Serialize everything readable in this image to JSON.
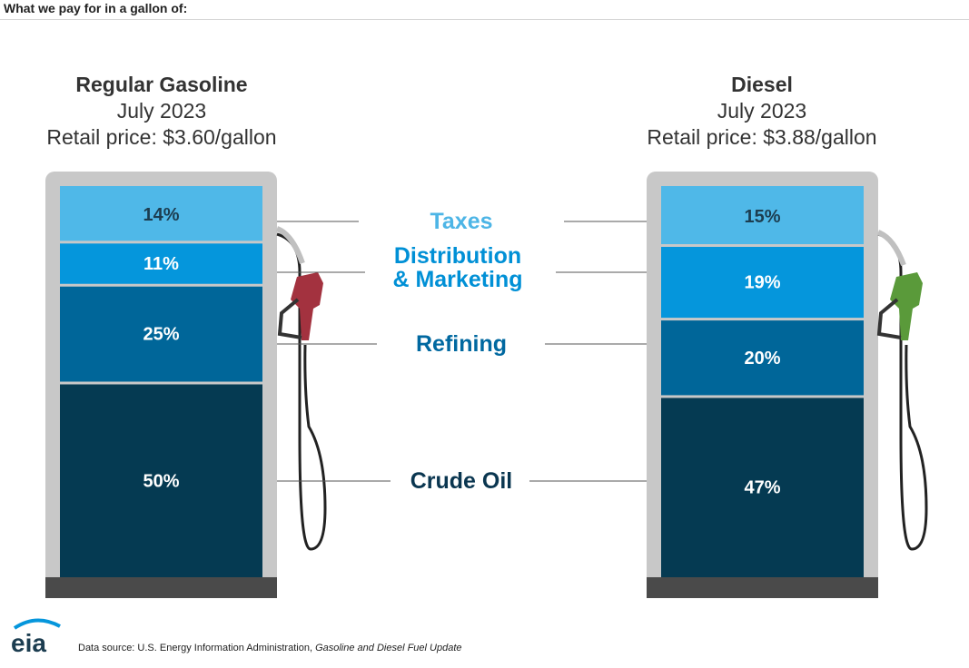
{
  "page_title": "What we pay for in a gallon of:",
  "fuels": [
    {
      "name": "Regular Gasoline",
      "period": "July 2023",
      "price_text": "Retail price: $3.60/gallon",
      "nozzle_color": "#a3323f"
    },
    {
      "name": "Diesel",
      "period": "July 2023",
      "price_text": "Retail price: $3.88/gallon",
      "nozzle_color": "#5a9a3a"
    }
  ],
  "categories": {
    "taxes": "Taxes",
    "distribution_line1": "Distribution",
    "distribution_line2": "& Marketing",
    "refining": "Refining",
    "crude": "Crude Oil"
  },
  "chart_data": {
    "type": "bar",
    "stacked": true,
    "categories": [
      "Regular Gasoline",
      "Diesel"
    ],
    "series": [
      {
        "name": "Crude Oil",
        "values": [
          50,
          47
        ],
        "labels": [
          "50%",
          "47%"
        ],
        "color": "#053a52"
      },
      {
        "name": "Refining",
        "values": [
          25,
          20
        ],
        "labels": [
          "25%",
          "20%"
        ],
        "color": "#006699"
      },
      {
        "name": "Distribution & Marketing",
        "values": [
          11,
          19
        ],
        "labels": [
          "11%",
          "19%"
        ],
        "color": "#0596dc"
      },
      {
        "name": "Taxes",
        "values": [
          14,
          15
        ],
        "labels": [
          "14%",
          "15%"
        ],
        "color": "#4fb8e8"
      }
    ]
  },
  "footer": {
    "logo_text": "eia",
    "source_prefix": "Data source: U.S. Energy Information Administration, ",
    "source_title": "Gasoline and Diesel Fuel Update"
  }
}
